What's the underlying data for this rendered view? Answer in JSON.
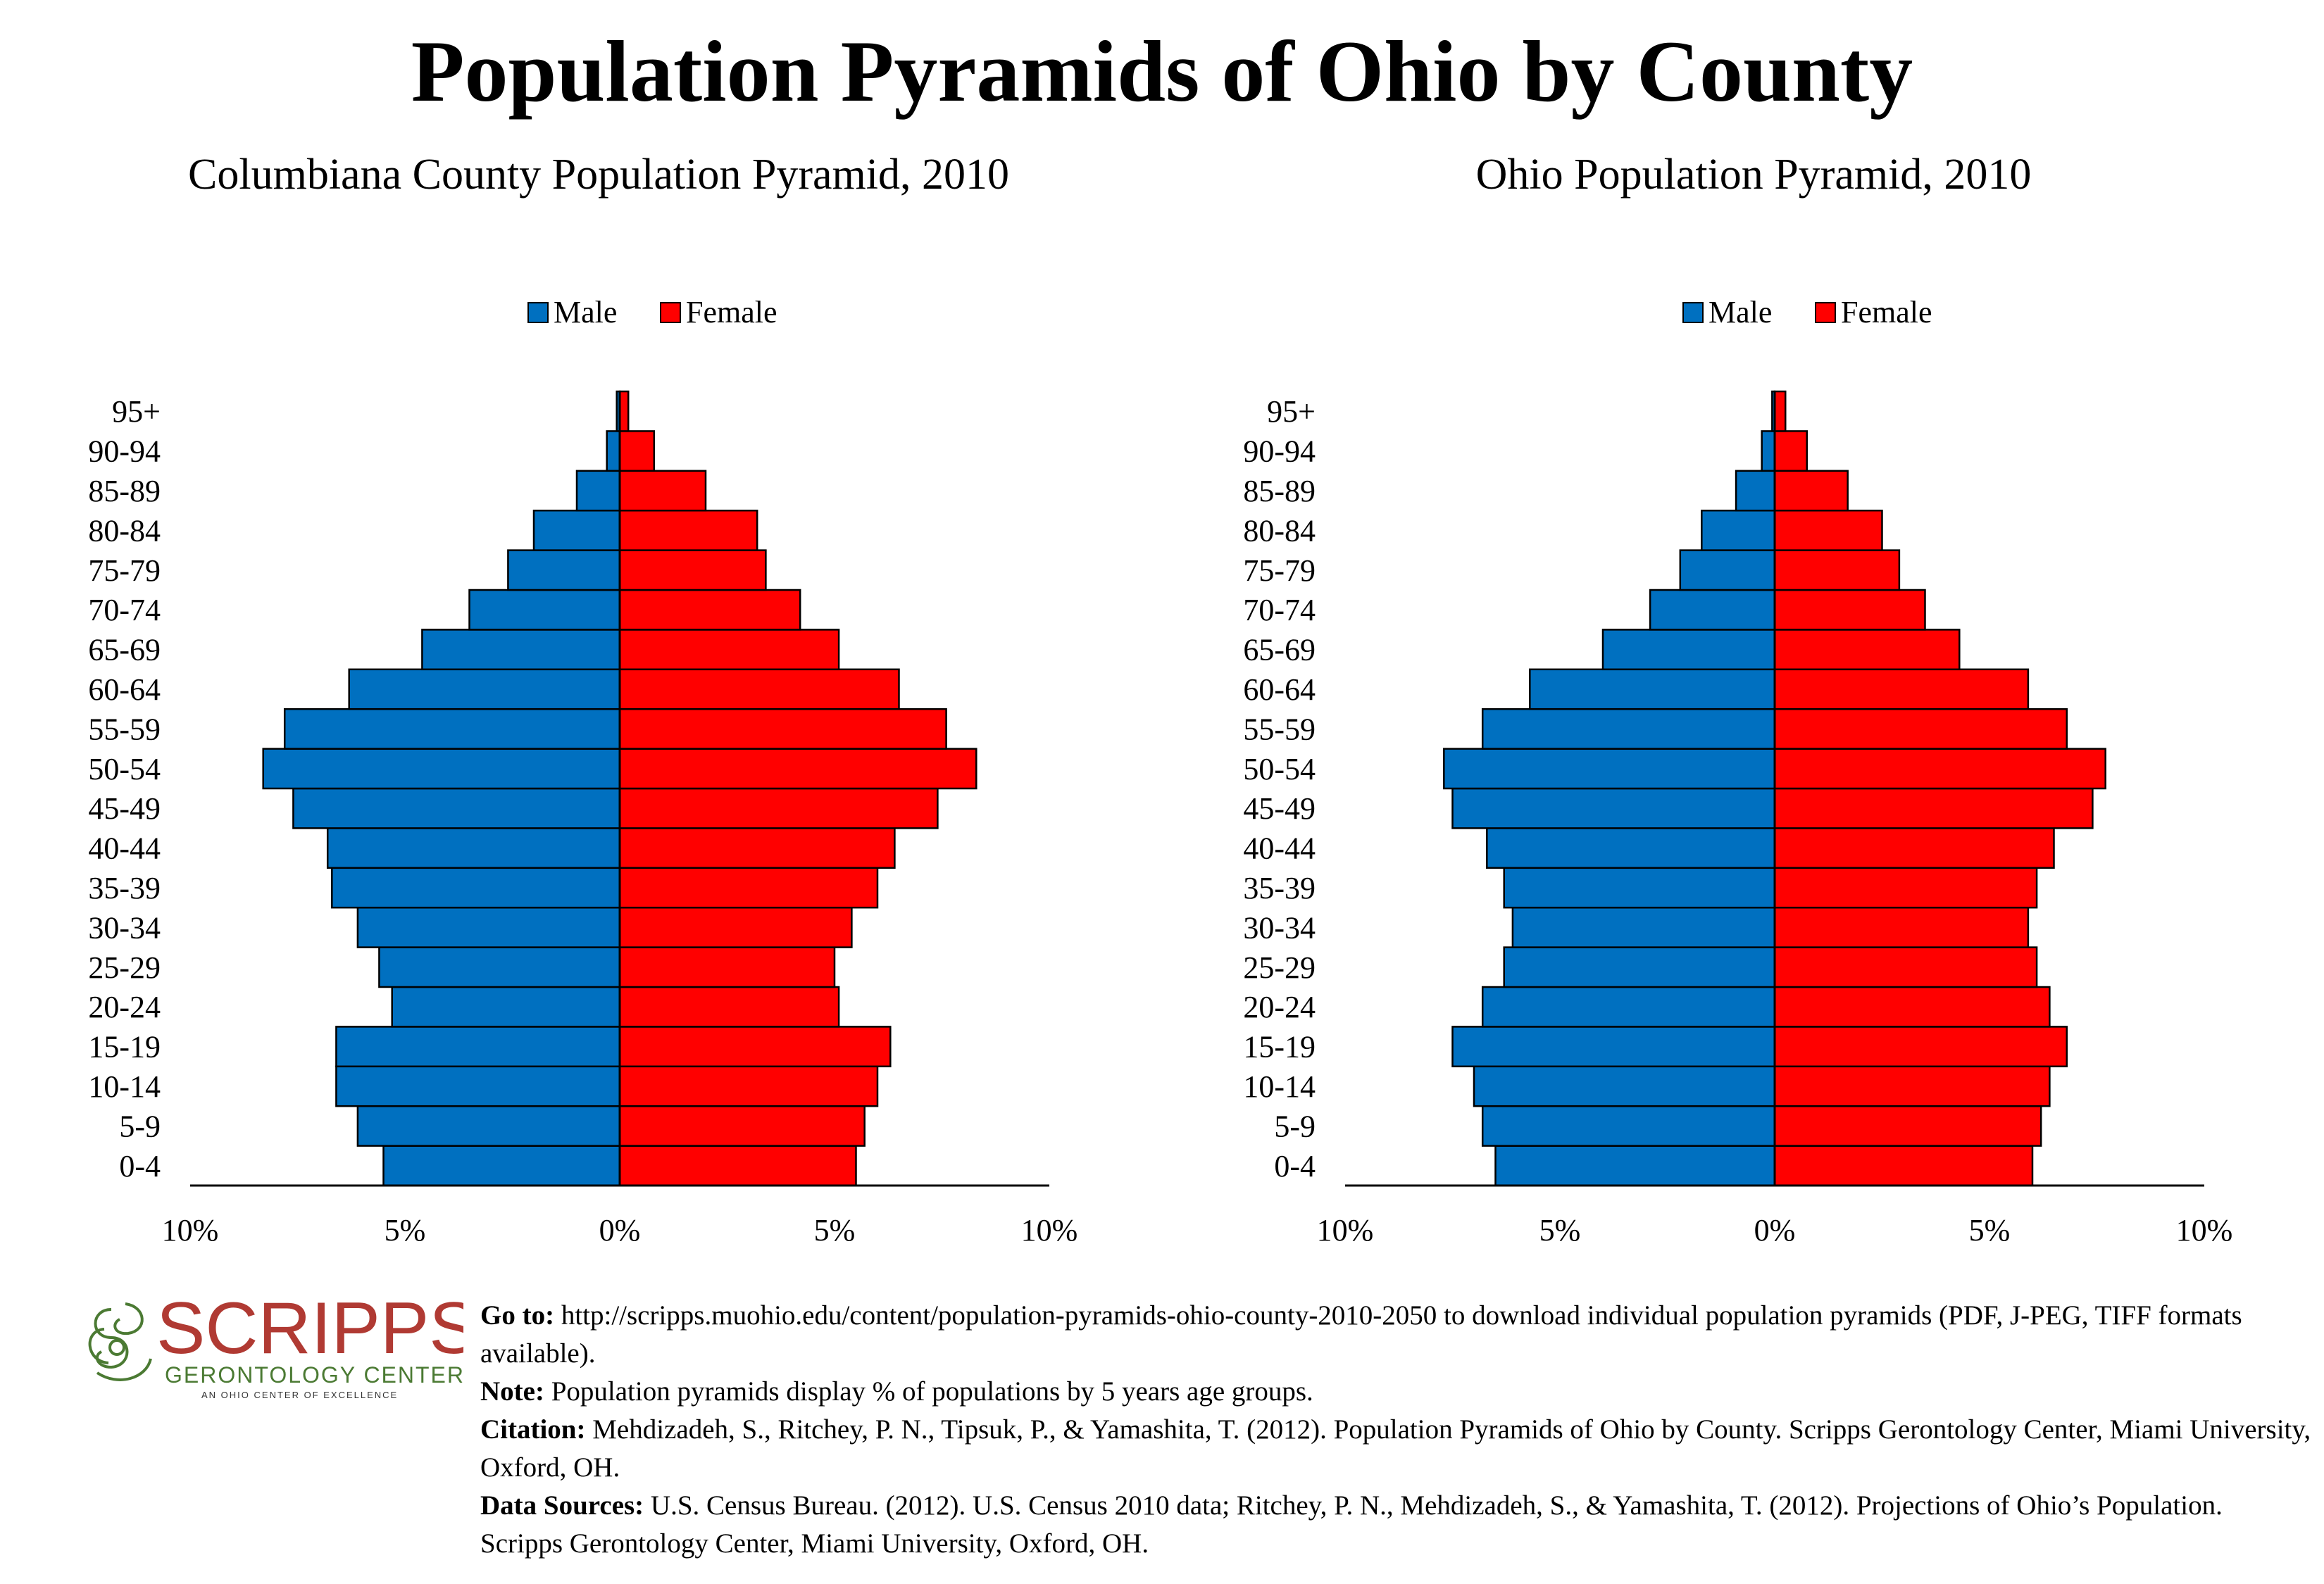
{
  "title": "Population Pyramids of Ohio by County",
  "colors": {
    "male": "#0070C0",
    "female": "#FF0000",
    "logo_red": "#B03A33",
    "logo_green": "#4B7A33"
  },
  "chart_data": [
    {
      "type": "bar",
      "orientation": "horizontal-population-pyramid",
      "title": "Columbiana County Population Pyramid, 2010",
      "legend_position": "top-center",
      "categories": [
        "0-4",
        "5-9",
        "10-14",
        "15-19",
        "20-24",
        "25-29",
        "30-34",
        "35-39",
        "40-44",
        "45-49",
        "50-54",
        "55-59",
        "60-64",
        "65-69",
        "70-74",
        "75-79",
        "80-84",
        "85-89",
        "90-94",
        "95+"
      ],
      "series": [
        {
          "name": "Male",
          "values": [
            5.5,
            6.1,
            6.6,
            6.6,
            5.3,
            5.6,
            6.1,
            6.7,
            6.8,
            7.6,
            8.3,
            7.8,
            6.3,
            4.6,
            3.5,
            2.6,
            2.0,
            1.0,
            0.3,
            0.07
          ]
        },
        {
          "name": "Female",
          "values": [
            5.5,
            5.7,
            6.0,
            6.3,
            5.1,
            5.0,
            5.4,
            6.0,
            6.4,
            7.4,
            8.3,
            7.6,
            6.5,
            5.1,
            4.2,
            3.4,
            3.2,
            2.0,
            0.8,
            0.2
          ]
        }
      ],
      "xlim": [
        -10,
        10
      ],
      "x_ticks": [
        "10%",
        "5%",
        "0%",
        "5%",
        "10%"
      ],
      "xlabel": "",
      "ylabel": "",
      "grid": false
    },
    {
      "type": "bar",
      "orientation": "horizontal-population-pyramid",
      "title": "Ohio Population Pyramid, 2010",
      "legend_position": "top-center",
      "categories": [
        "0-4",
        "5-9",
        "10-14",
        "15-19",
        "20-24",
        "25-29",
        "30-34",
        "35-39",
        "40-44",
        "45-49",
        "50-54",
        "55-59",
        "60-64",
        "65-69",
        "70-74",
        "75-79",
        "80-84",
        "85-89",
        "90-94",
        "95+"
      ],
      "series": [
        {
          "name": "Male",
          "values": [
            6.5,
            6.8,
            7.0,
            7.5,
            6.8,
            6.3,
            6.1,
            6.3,
            6.7,
            7.5,
            7.7,
            6.8,
            5.7,
            4.0,
            2.9,
            2.2,
            1.7,
            0.9,
            0.3,
            0.06
          ]
        },
        {
          "name": "Female",
          "values": [
            6.0,
            6.2,
            6.4,
            6.8,
            6.4,
            6.1,
            5.9,
            6.1,
            6.5,
            7.4,
            7.7,
            6.8,
            5.9,
            4.3,
            3.5,
            2.9,
            2.5,
            1.7,
            0.75,
            0.25
          ]
        }
      ],
      "xlim": [
        -10,
        10
      ],
      "x_ticks": [
        "10%",
        "5%",
        "0%",
        "5%",
        "10%"
      ],
      "xlabel": "",
      "ylabel": "",
      "grid": false
    }
  ],
  "logo": {
    "wordmark": "SCRIPPS",
    "line2": "GERONTOLOGY CENTER",
    "line3": "AN OHIO CENTER OF EXCELLENCE"
  },
  "notes": [
    {
      "label": "Go to:",
      "text": " http://scripps.muohio.edu/content/population-pyramids-ohio-county-2010-2050 to download individual population pyramids (PDF, J-PEG, TIFF formats available)."
    },
    {
      "label": "Note:",
      "text": " Population pyramids display % of populations by 5 years age groups."
    },
    {
      "label": "Citation:",
      "text": " Mehdizadeh, S., Ritchey, P. N., Tipsuk, P., & Yamashita, T. (2012). Population Pyramids of Ohio by County. Scripps Gerontology Center, Miami University, Oxford, OH."
    },
    {
      "label": "Data Sources:",
      "text": " U.S. Census Bureau. (2012). U.S. Census 2010 data; Ritchey, P. N., Mehdizadeh, S., & Yamashita, T. (2012). Projections of Ohio’s Population. Scripps Gerontology Center, Miami University, Oxford, OH."
    }
  ]
}
